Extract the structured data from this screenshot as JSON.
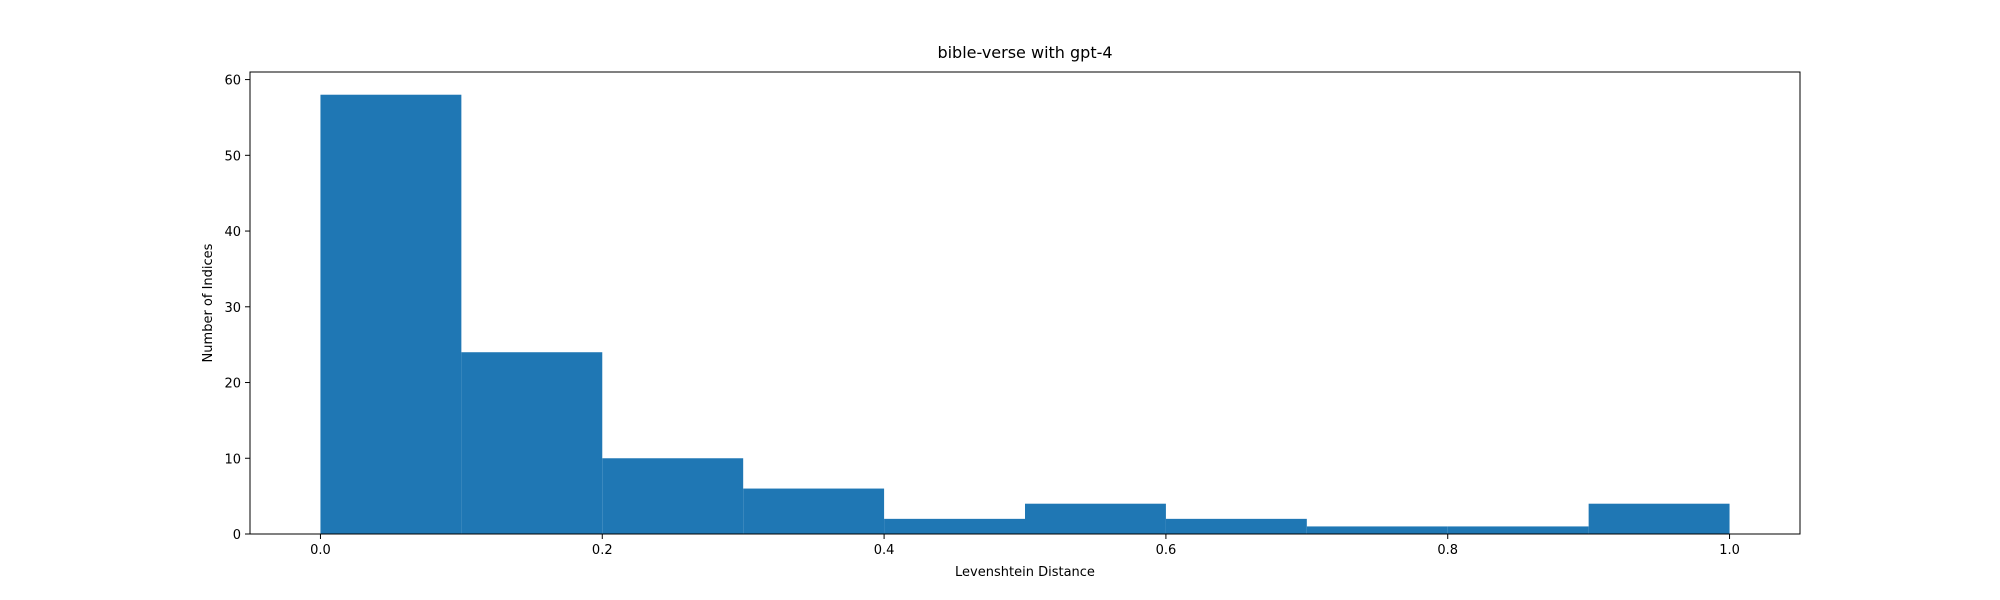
{
  "chart_data": {
    "type": "bar",
    "title": "bible-verse with gpt-4",
    "xlabel": "Levenshtein Distance",
    "ylabel": "Number of Indices",
    "bins": [
      {
        "x0": 0.0,
        "x1": 0.1,
        "count": 58
      },
      {
        "x0": 0.1,
        "x1": 0.2,
        "count": 24
      },
      {
        "x0": 0.2,
        "x1": 0.3,
        "count": 10
      },
      {
        "x0": 0.3,
        "x1": 0.4,
        "count": 6
      },
      {
        "x0": 0.4,
        "x1": 0.5,
        "count": 2
      },
      {
        "x0": 0.5,
        "x1": 0.6,
        "count": 4
      },
      {
        "x0": 0.6,
        "x1": 0.7,
        "count": 2
      },
      {
        "x0": 0.7,
        "x1": 0.8,
        "count": 1
      },
      {
        "x0": 0.8,
        "x1": 0.9,
        "count": 1
      },
      {
        "x0": 0.9,
        "x1": 1.0,
        "count": 4
      }
    ],
    "xlim": [
      -0.05,
      1.05
    ],
    "ylim": [
      0,
      61
    ],
    "xticks": [
      "0.0",
      "0.2",
      "0.4",
      "0.6",
      "0.8",
      "1.0"
    ],
    "yticks": [
      "0",
      "10",
      "20",
      "30",
      "40",
      "50",
      "60"
    ],
    "grid": false,
    "bar_color": "#1f77b4"
  }
}
